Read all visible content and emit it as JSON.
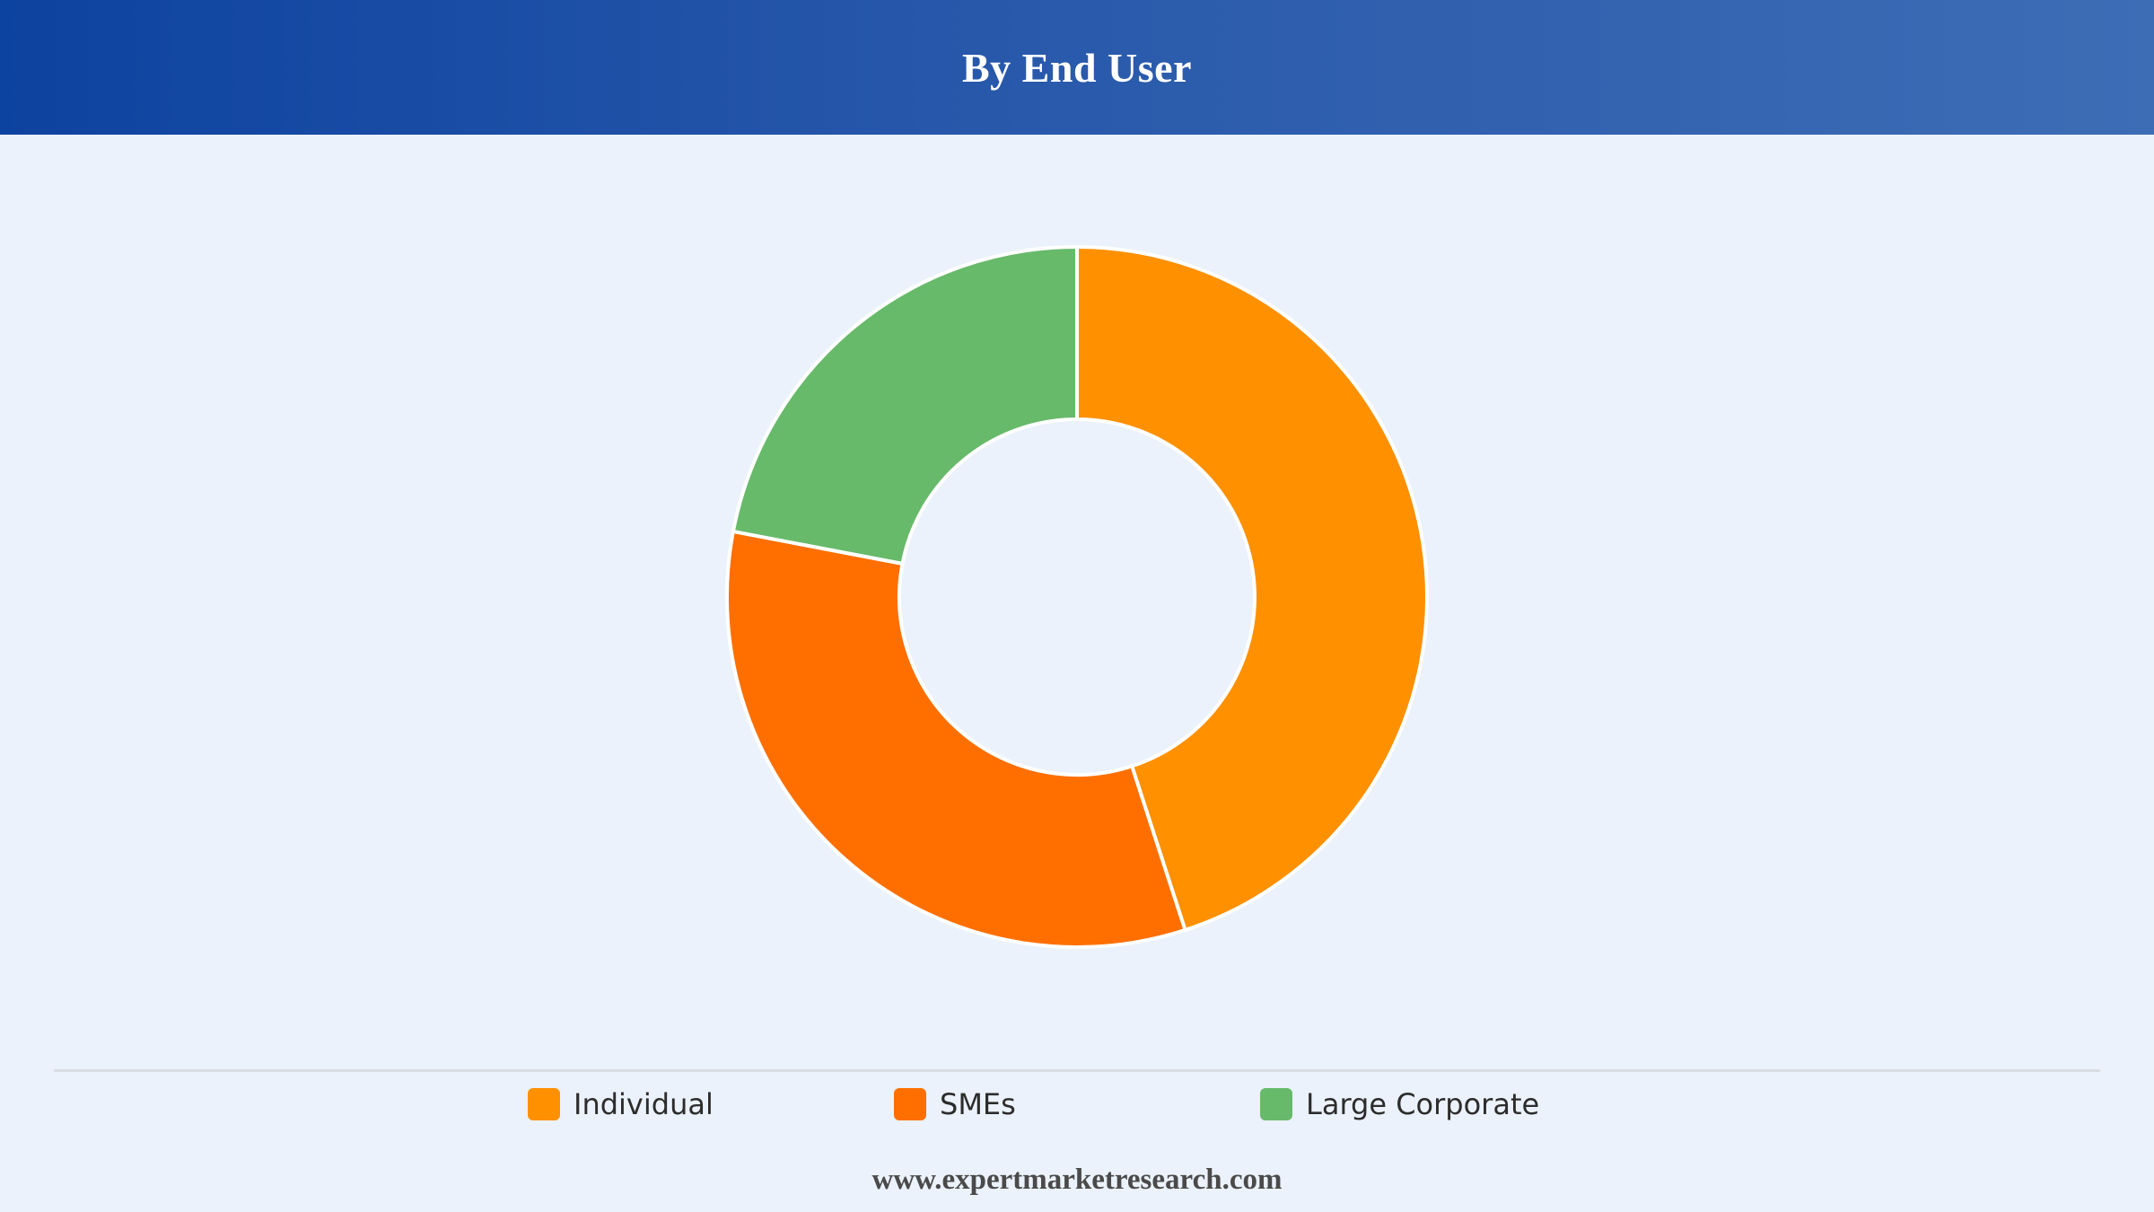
{
  "header": {
    "title": "By End User"
  },
  "chart_data": {
    "type": "pie",
    "variant": "donut",
    "title": "By End User",
    "categories": [
      "Individual",
      "SMEs",
      "Large Corporate"
    ],
    "values": [
      45,
      33,
      22
    ],
    "unit": "%",
    "colors": [
      "#ff9000",
      "#ff6f00",
      "#67ba6a"
    ],
    "start_angle_deg": 0,
    "direction": "clockwise",
    "legend_position": "bottom"
  },
  "legend": {
    "items": [
      {
        "label": "Individual",
        "color": "#ff9000"
      },
      {
        "label": "SMEs",
        "color": "#ff6f00"
      },
      {
        "label": "Large Corporate",
        "color": "#67ba6a"
      }
    ]
  },
  "footer": {
    "text": "www.expertmarketresearch.com"
  }
}
